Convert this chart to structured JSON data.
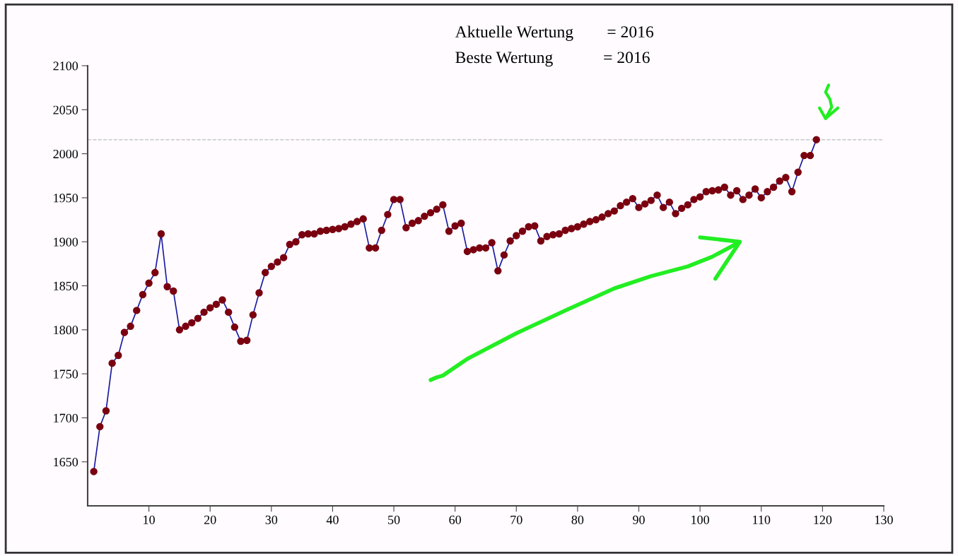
{
  "chart_data": {
    "type": "line",
    "x": [
      1,
      2,
      3,
      4,
      5,
      6,
      7,
      8,
      9,
      10,
      11,
      12,
      13,
      14,
      15,
      16,
      17,
      18,
      19,
      20,
      21,
      22,
      23,
      24,
      25,
      26,
      27,
      28,
      29,
      30,
      31,
      32,
      33,
      34,
      35,
      36,
      37,
      38,
      39,
      40,
      41,
      42,
      43,
      44,
      45,
      46,
      47,
      48,
      49,
      50,
      51,
      52,
      53,
      54,
      55,
      56,
      57,
      58,
      59,
      60,
      61,
      62,
      63,
      64,
      65,
      66,
      67,
      68,
      69,
      70,
      71,
      72,
      73,
      74,
      75,
      76,
      77,
      78,
      79,
      80,
      81,
      82,
      83,
      84,
      85,
      86,
      87,
      88,
      89,
      90,
      91,
      92,
      93,
      94,
      95,
      96,
      97,
      98,
      99,
      100,
      101,
      102,
      103,
      104,
      105,
      106,
      107,
      108,
      109,
      110,
      111,
      112,
      113,
      114,
      115,
      116,
      117,
      118,
      119
    ],
    "series": [
      {
        "color": "#7a0010",
        "values": [
          1639,
          1690,
          1708,
          1762,
          1771,
          1797,
          1804,
          1822,
          1840,
          1853,
          1865,
          1909,
          1849,
          1844,
          1800,
          1804,
          1808,
          1813,
          1820,
          1825,
          1829,
          1834,
          1820,
          1803,
          1787,
          1788,
          1817,
          1842,
          1865,
          1872,
          1877,
          1882,
          1897,
          1900,
          1908,
          1909,
          1909,
          1912,
          1913,
          1914,
          1915,
          1917,
          1920,
          1923,
          1926,
          1893,
          1893,
          1913,
          1931,
          1948,
          1948,
          1916,
          1921,
          1924,
          1929,
          1933,
          1937,
          1942,
          1912,
          1918,
          1921,
          1889,
          1891,
          1893,
          1893,
          1899,
          1867,
          1885,
          1901,
          1907,
          1912,
          1917,
          1918,
          1901,
          1906,
          1908,
          1909,
          1913,
          1915,
          1917,
          1920,
          1923,
          1925,
          1928,
          1932,
          1935,
          1941,
          1945,
          1949,
          1939,
          1943,
          1947,
          1953,
          1939,
          1945,
          1932,
          1938,
          1942,
          1948,
          1951,
          1957,
          1958,
          1959,
          1962,
          1953,
          1958,
          1948,
          1953,
          1960,
          1950,
          1957,
          1962,
          1969,
          1973,
          1957,
          1979,
          1998,
          1998,
          2016
        ]
      }
    ],
    "marker": "circle",
    "line_style": "solid",
    "xlim": [
      0,
      130
    ],
    "xticks": [
      10,
      20,
      30,
      40,
      50,
      60,
      70,
      80,
      90,
      100,
      110,
      120,
      130
    ],
    "ylim": [
      1600,
      2100
    ],
    "yticks": [
      1650,
      1700,
      1750,
      1800,
      1850,
      1900,
      1950,
      2000,
      2050,
      2100
    ],
    "grid": false,
    "legend": false,
    "ref_lines": [
      {
        "axis": "y",
        "value": 2016,
        "color": "#c8c8c8",
        "line_style": "dashed"
      }
    ],
    "annotations": [
      "Aktuelle Wertung        = 2016",
      "Beste Wertung            = 2016"
    ]
  }
}
